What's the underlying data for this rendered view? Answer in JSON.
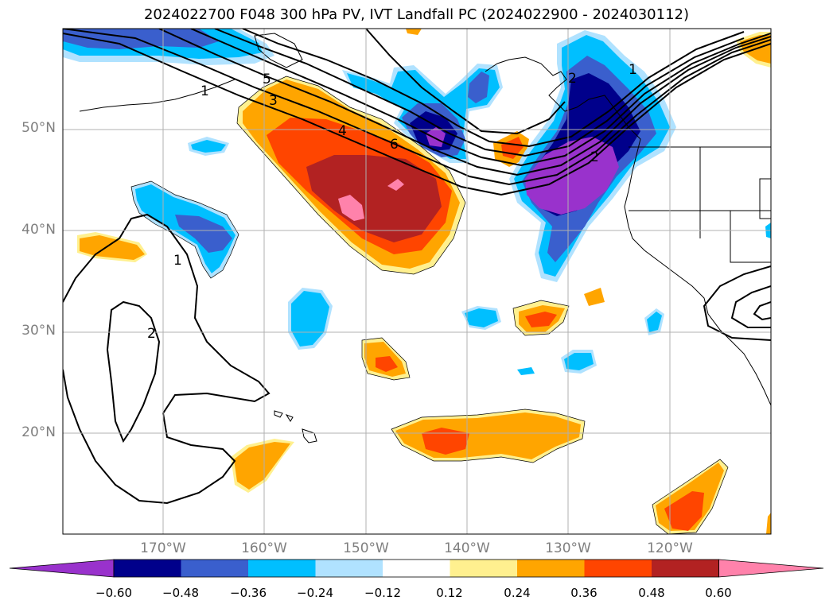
{
  "title": "2024022700 F048 300 hPa PV, IVT Landfall PC (2024022900 - 2024030112)",
  "map": {
    "lat_labels": [
      "50°N",
      "40°N",
      "30°N",
      "20°N"
    ],
    "lon_labels": [
      "170°W",
      "160°W",
      "150°W",
      "140°W",
      "130°W",
      "120°W"
    ],
    "contour_labels": [
      "1",
      "2",
      "3",
      "4",
      "5",
      "6",
      "1",
      "2",
      "1",
      "2"
    ]
  },
  "colorbar": {
    "ticks": [
      "−0.60",
      "−0.48",
      "−0.36",
      "−0.24",
      "−0.12",
      "0.12",
      "0.24",
      "0.36",
      "0.48",
      "0.60"
    ],
    "colors": [
      "#9932cc",
      "#00008b",
      "#3a5fcd",
      "#00bfff",
      "#b0e2ff",
      "#ffffff",
      "#fff08f",
      "#ffa500",
      "#ff4500",
      "#b22222",
      "#ff82ab"
    ]
  }
}
